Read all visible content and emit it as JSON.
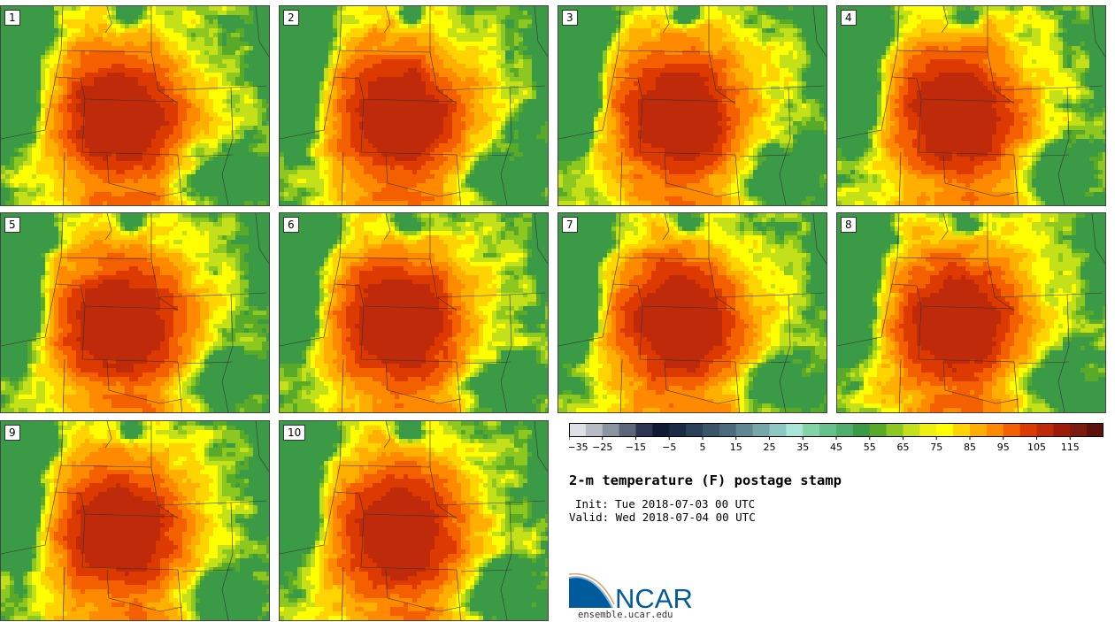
{
  "members": [
    "1",
    "2",
    "3",
    "4",
    "5",
    "6",
    "7",
    "8",
    "9",
    "10"
  ],
  "colorbar": {
    "colors": [
      "#dde1e6",
      "#b7bcc4",
      "#8c93a1",
      "#5e6679",
      "#2d3550",
      "#0f1a33",
      "#1b2b45",
      "#2a4058",
      "#3a5468",
      "#4b6a7b",
      "#5f8892",
      "#74a6aa",
      "#8ec8c4",
      "#a8e6da",
      "#82d4a8",
      "#66c08a",
      "#4fae6a",
      "#3b9a45",
      "#5aaa2a",
      "#8cc820",
      "#c4e018",
      "#f0f010",
      "#ffff00",
      "#ffd400",
      "#ffaf00",
      "#ff8a00",
      "#f46000",
      "#dc3a00",
      "#bf2a0a",
      "#a01a0a",
      "#7c1a10",
      "#5c1208"
    ],
    "tick_labels": [
      "−35",
      "−25",
      "−15",
      "−5",
      "5",
      "15",
      "25",
      "35",
      "45",
      "55",
      "65",
      "75",
      "85",
      "95",
      "105",
      "115"
    ]
  },
  "title": "2-m temperature (F) postage stamp",
  "init_text": "Init: Tue 2018-07-03 00 UTC",
  "valid_text": "Valid: Wed 2018-07-04 00 UTC",
  "logo": {
    "text": "NCAR",
    "url": "ensemble.ucar.edu",
    "brand_color": "#005a9c"
  }
}
